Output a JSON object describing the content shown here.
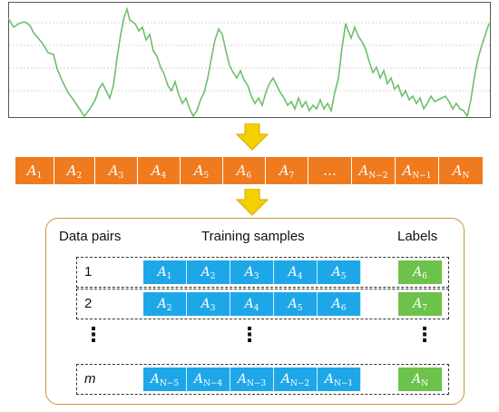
{
  "sequence": [
    {
      "base": "A",
      "sub": "1"
    },
    {
      "base": "A",
      "sub": "2"
    },
    {
      "base": "A",
      "sub": "3"
    },
    {
      "base": "A",
      "sub": "4"
    },
    {
      "base": "A",
      "sub": "5"
    },
    {
      "base": "A",
      "sub": "6"
    },
    {
      "base": "A",
      "sub": "7"
    },
    {
      "base": "…",
      "sub": ""
    },
    {
      "base": "A",
      "sub": "N−2"
    },
    {
      "base": "A",
      "sub": "N−1"
    },
    {
      "base": "A",
      "sub": "N"
    }
  ],
  "headers": {
    "data_pairs": "Data pairs",
    "training_samples": "Training samples",
    "labels": "Labels"
  },
  "rows": [
    {
      "index": "1",
      "samples": [
        {
          "base": "A",
          "sub": "1"
        },
        {
          "base": "A",
          "sub": "2"
        },
        {
          "base": "A",
          "sub": "3"
        },
        {
          "base": "A",
          "sub": "4"
        },
        {
          "base": "A",
          "sub": "5"
        }
      ],
      "label": {
        "base": "A",
        "sub": "6"
      }
    },
    {
      "index": "2",
      "samples": [
        {
          "base": "A",
          "sub": "2"
        },
        {
          "base": "A",
          "sub": "3"
        },
        {
          "base": "A",
          "sub": "4"
        },
        {
          "base": "A",
          "sub": "5"
        },
        {
          "base": "A",
          "sub": "6"
        }
      ],
      "label": {
        "base": "A",
        "sub": "7"
      }
    },
    {
      "index": "m",
      "samples": [
        {
          "base": "A",
          "sub": "N−5"
        },
        {
          "base": "A",
          "sub": "N−4"
        },
        {
          "base": "A",
          "sub": "N−3"
        },
        {
          "base": "A",
          "sub": "N−2"
        },
        {
          "base": "A",
          "sub": "N−1"
        }
      ],
      "label": {
        "base": "A",
        "sub": "N"
      }
    }
  ],
  "ellipsis": "⋮",
  "colors": {
    "sequence": "#f07a1e",
    "samples": "#1ea7e8",
    "labels": "#6cc24a",
    "arrow": "#f5d000",
    "line": "#6dbf6d",
    "panel_border": "#c8963c"
  }
}
